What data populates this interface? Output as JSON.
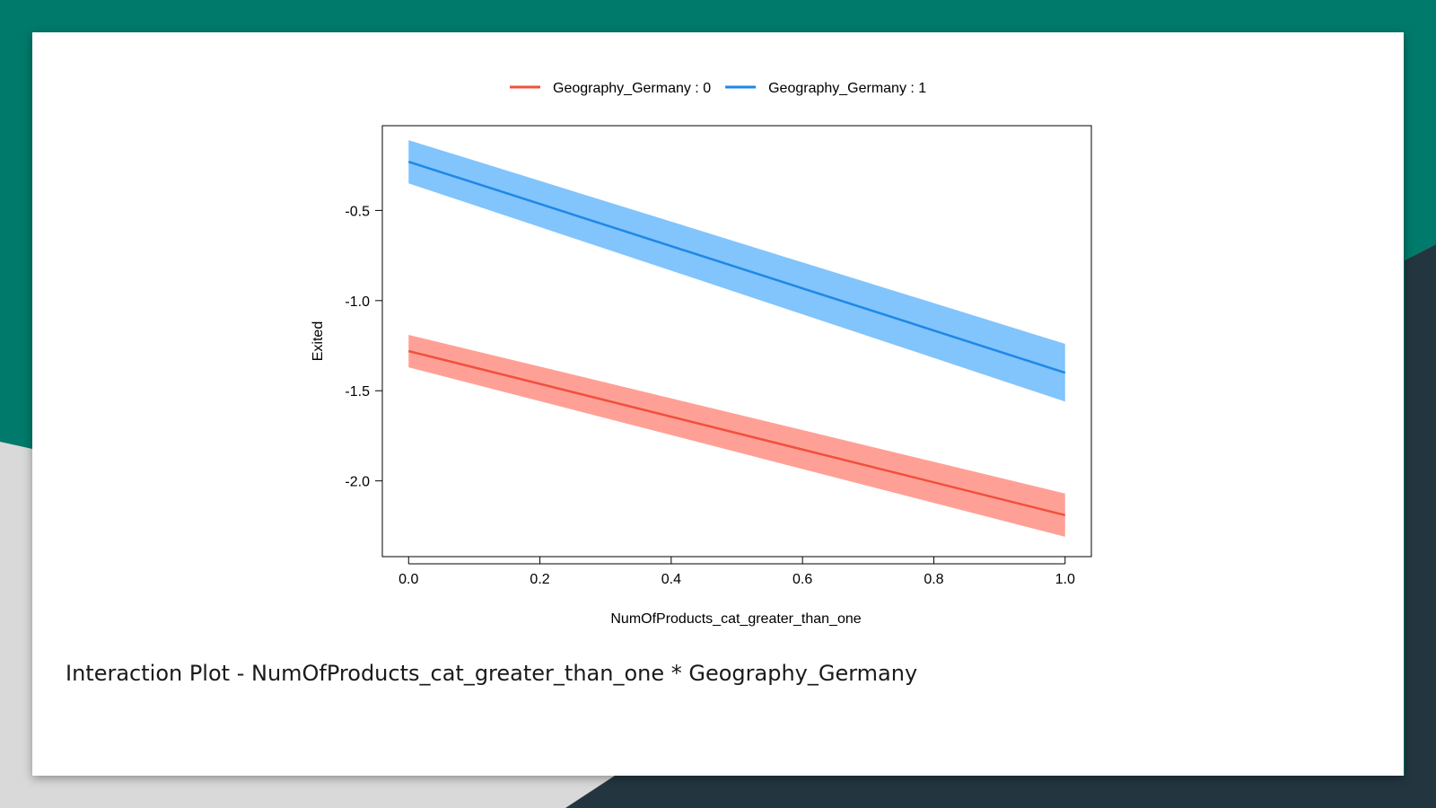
{
  "slide": {
    "caption": "Interaction Plot - NumOfProducts_cat_greater_than_one * Geography_Germany",
    "colors": {
      "background_teal": "#007a6b",
      "background_dark": "#233640",
      "background_grey": "#d9d9d9"
    }
  },
  "chart_data": {
    "type": "line",
    "title": "",
    "xlabel": "NumOfProducts_cat_greater_than_one",
    "ylabel": "Exited",
    "xlim": [
      -0.04,
      1.04
    ],
    "ylim": [
      -2.42,
      -0.03
    ],
    "x_ticks": [
      0.0,
      0.2,
      0.4,
      0.6,
      0.8,
      1.0
    ],
    "x_tick_labels": [
      "0.0",
      "0.2",
      "0.4",
      "0.6",
      "0.8",
      "1.0"
    ],
    "y_ticks": [
      -0.5,
      -1.0,
      -1.5,
      -2.0
    ],
    "y_tick_labels": [
      "-0.5",
      "-1.0",
      "-1.5",
      "-2.0"
    ],
    "grid": false,
    "legend_position": "top-center",
    "series": [
      {
        "name": "Geography_Germany : 0",
        "color": "#f0503c",
        "band_color": "#ffa096",
        "x": [
          0.0,
          1.0
        ],
        "y": [
          -1.28,
          -2.19
        ],
        "lower": [
          -1.37,
          -2.31
        ],
        "upper": [
          -1.19,
          -2.07
        ]
      },
      {
        "name": "Geography_Germany : 1",
        "color": "#1e88e5",
        "band_color": "#82c4fc",
        "x": [
          0.0,
          1.0
        ],
        "y": [
          -0.23,
          -1.4
        ],
        "lower": [
          -0.35,
          -1.56
        ],
        "upper": [
          -0.11,
          -1.24
        ]
      }
    ]
  }
}
